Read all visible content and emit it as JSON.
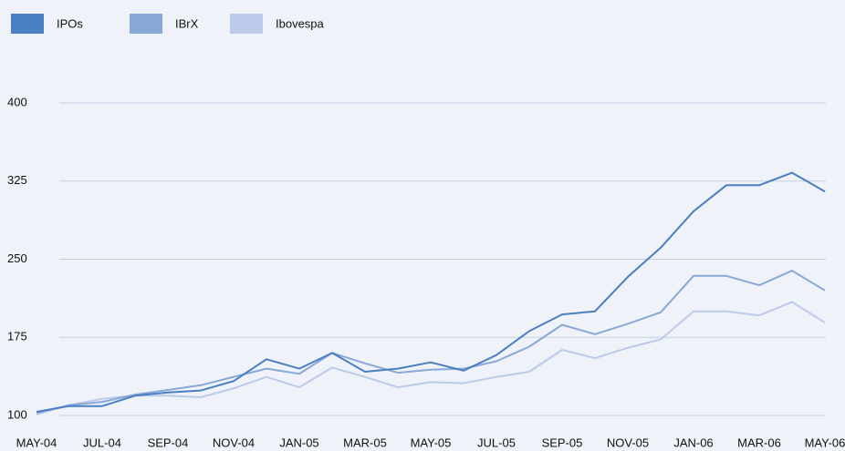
{
  "chart_data": {
    "type": "line",
    "categories": [
      "MAY-04",
      null,
      "JUL-04",
      null,
      "SEP-04",
      null,
      "NOV-04",
      null,
      "JAN-05",
      null,
      "MAR-05",
      null,
      "MAY-05",
      null,
      "JUL-05",
      null,
      "SEP-05",
      null,
      "NOV-05",
      null,
      "JAN-06",
      null,
      "MAR-06",
      null,
      "MAY-06"
    ],
    "series": [
      {
        "name": "IPOs",
        "color": "#4a7fc1",
        "values": [
          103.5,
          109,
          109,
          119,
          122,
          124,
          133,
          154,
          145,
          160,
          142,
          145,
          151,
          143,
          158,
          181,
          197,
          200,
          233,
          261,
          296,
          321,
          321,
          333,
          315
        ]
      },
      {
        "name": "IBrX",
        "color": "#88a8d8",
        "values": [
          102.5,
          110,
          113,
          120,
          124.5,
          129,
          137,
          145,
          140,
          160,
          150,
          141,
          144,
          145,
          152,
          166,
          187,
          178,
          188,
          199,
          234,
          234,
          225,
          239,
          220
        ]
      },
      {
        "name": "Ibovespa",
        "color": "#bccbea",
        "values": [
          101,
          110,
          116,
          119,
          119,
          117.5,
          126,
          137,
          127,
          146,
          137,
          127,
          132,
          131,
          137,
          142,
          163,
          155,
          165,
          173,
          200,
          200,
          196,
          209,
          189
        ]
      }
    ],
    "ylim": [
      100,
      400
    ],
    "yticks": [
      100,
      175,
      250,
      325,
      400
    ],
    "grid": true,
    "legend": "top-left"
  }
}
